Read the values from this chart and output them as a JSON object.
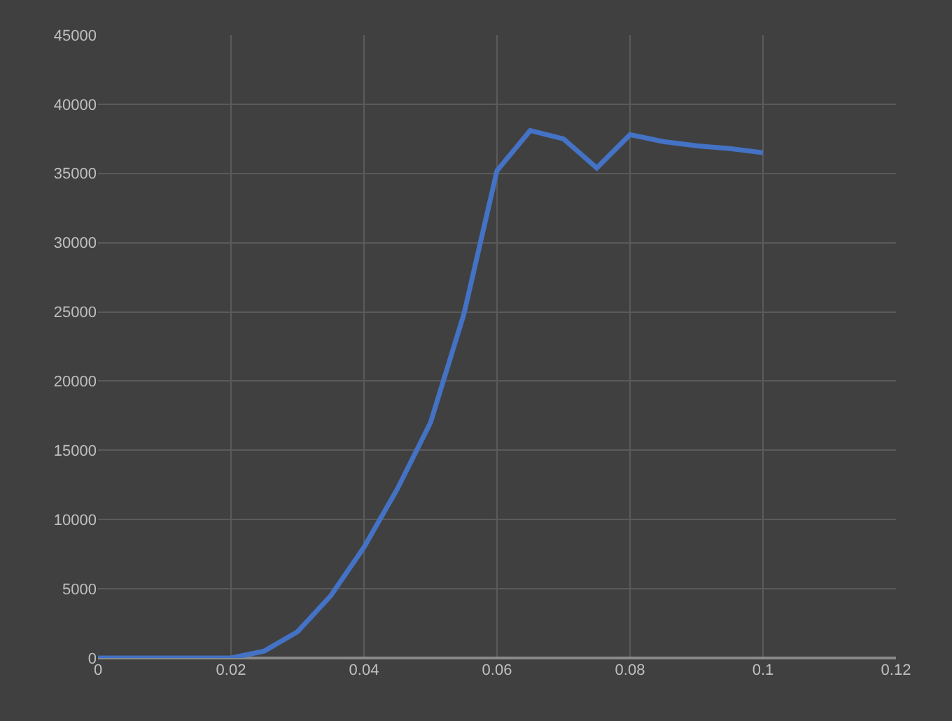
{
  "chart_data": {
    "type": "line",
    "x": [
      0,
      0.005,
      0.01,
      0.015,
      0.02,
      0.025,
      0.03,
      0.035,
      0.04,
      0.045,
      0.05,
      0.055,
      0.06,
      0.065,
      0.07,
      0.075,
      0.08,
      0.085,
      0.09,
      0.095,
      0.1
    ],
    "series": [
      {
        "color": "#4472c4",
        "values": [
          0,
          0,
          0,
          0,
          0,
          500,
          1900,
          4500,
          8000,
          12200,
          17000,
          24800,
          35200,
          38100,
          37500,
          35400,
          37800,
          37300,
          37000,
          36800,
          36500
        ]
      }
    ],
    "xlim": [
      0,
      0.12
    ],
    "xticks": [
      0,
      0.02,
      0.04,
      0.06,
      0.08,
      0.1,
      0.12
    ],
    "ylim": [
      0,
      45000
    ],
    "yticks": [
      0,
      5000,
      10000,
      15000,
      20000,
      25000,
      30000,
      35000,
      40000,
      45000
    ],
    "grid": true,
    "marker": "none",
    "line_style": "solid"
  }
}
